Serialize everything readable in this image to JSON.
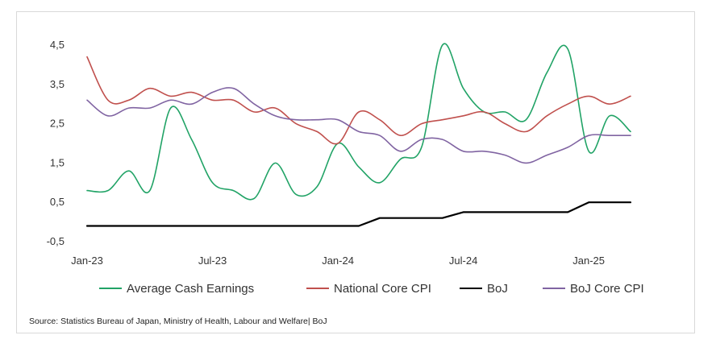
{
  "chart_data": {
    "type": "line",
    "title": "",
    "xlabel": "",
    "ylabel": "",
    "ylim": [
      -0.5,
      4.5
    ],
    "yticks": [
      "-0,5",
      "0,5",
      "1,5",
      "2,5",
      "3,5",
      "4,5"
    ],
    "ytick_values": [
      -0.5,
      0.5,
      1.5,
      2.5,
      3.5,
      4.5
    ],
    "x": [
      "Jan-23",
      "Feb-23",
      "Mar-23",
      "Apr-23",
      "May-23",
      "Jun-23",
      "Jul-23",
      "Aug-23",
      "Sep-23",
      "Oct-23",
      "Nov-23",
      "Dec-23",
      "Jan-24",
      "Feb-24",
      "Mar-24",
      "Apr-24",
      "May-24",
      "Jun-24",
      "Jul-24",
      "Aug-24",
      "Sep-24",
      "Oct-24",
      "Nov-24",
      "Dec-24",
      "Jan-25",
      "Feb-25",
      "Mar-25"
    ],
    "xtick_labels": [
      "Jan-23",
      "Jul-23",
      "Jan-24",
      "Jul-24",
      "Jan-25"
    ],
    "xtick_indices": [
      0,
      6,
      12,
      18,
      24
    ],
    "grid": false,
    "legend_position": "bottom",
    "series": [
      {
        "name": "Average Cash Earnings",
        "color": "#21a366",
        "values": [
          0.8,
          0.8,
          1.3,
          0.8,
          2.9,
          2.1,
          1.0,
          0.8,
          0.6,
          1.5,
          0.7,
          0.9,
          2.0,
          1.4,
          1.0,
          1.6,
          1.9,
          4.5,
          3.4,
          2.8,
          2.8,
          2.6,
          3.8,
          4.4,
          1.8,
          2.7,
          2.3
        ]
      },
      {
        "name": "National Core CPI",
        "color": "#c0504d",
        "values": [
          4.2,
          3.1,
          3.1,
          3.4,
          3.2,
          3.3,
          3.1,
          3.1,
          2.8,
          2.9,
          2.5,
          2.3,
          2.0,
          2.8,
          2.6,
          2.2,
          2.5,
          2.6,
          2.7,
          2.8,
          2.5,
          2.3,
          2.7,
          3.0,
          3.2,
          3.0,
          3.2
        ]
      },
      {
        "name": "BoJ",
        "color": "#000000",
        "values": [
          -0.1,
          -0.1,
          -0.1,
          -0.1,
          -0.1,
          -0.1,
          -0.1,
          -0.1,
          -0.1,
          -0.1,
          -0.1,
          -0.1,
          -0.1,
          -0.1,
          0.1,
          0.1,
          0.1,
          0.1,
          0.25,
          0.25,
          0.25,
          0.25,
          0.25,
          0.25,
          0.5,
          0.5,
          0.5
        ]
      },
      {
        "name": "BoJ Core CPI",
        "color": "#8064a2",
        "values": [
          3.1,
          2.7,
          2.9,
          2.9,
          3.1,
          3.0,
          3.3,
          3.4,
          3.0,
          2.7,
          2.6,
          2.6,
          2.6,
          2.3,
          2.2,
          1.8,
          2.1,
          2.1,
          1.8,
          1.8,
          1.7,
          1.5,
          1.7,
          1.9,
          2.2,
          2.2,
          2.2
        ]
      }
    ]
  },
  "source": "Source: Statistics Bureau of Japan, Ministry of Health, Labour and Welfare| BoJ"
}
